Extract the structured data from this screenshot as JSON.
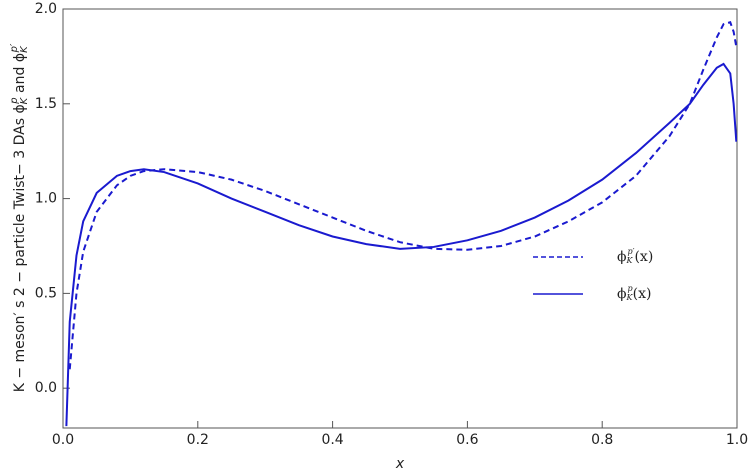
{
  "chart_data": {
    "type": "line",
    "y_label_parts": [
      "K − meson′ s 2 − particle Twist− 3 DAs ϕ",
      "K",
      "p",
      " and ϕ",
      "K",
      "p′"
    ],
    "x_label": "x",
    "x": [
      0.005,
      0.01,
      0.02,
      0.03,
      0.05,
      0.08,
      0.1,
      0.12,
      0.15,
      0.2,
      0.25,
      0.3,
      0.35,
      0.4,
      0.45,
      0.5,
      0.55,
      0.6,
      0.65,
      0.7,
      0.75,
      0.8,
      0.85,
      0.9,
      0.93,
      0.95,
      0.97,
      0.98,
      0.99,
      0.995,
      0.999
    ],
    "series": [
      {
        "name": "ϕ_K^p′(x)",
        "color": "#1a1acf",
        "dashed": true,
        "values": [
          null,
          0.1,
          0.5,
          0.72,
          0.93,
          1.07,
          1.12,
          1.145,
          1.155,
          1.14,
          1.1,
          1.04,
          0.97,
          0.9,
          0.83,
          0.77,
          0.735,
          0.73,
          0.75,
          0.8,
          0.88,
          0.98,
          1.12,
          1.33,
          1.5,
          1.68,
          1.85,
          1.92,
          1.93,
          1.88,
          1.8
        ]
      },
      {
        "name": "ϕ_K^p(x)",
        "color": "#1a1acf",
        "dashed": false,
        "values": [
          -0.2,
          0.35,
          0.7,
          0.88,
          1.03,
          1.12,
          1.145,
          1.155,
          1.14,
          1.08,
          1.0,
          0.93,
          0.86,
          0.8,
          0.76,
          0.735,
          0.745,
          0.78,
          0.83,
          0.9,
          0.99,
          1.1,
          1.24,
          1.4,
          1.5,
          1.6,
          1.69,
          1.71,
          1.66,
          1.5,
          1.3
        ]
      }
    ],
    "xlim": [
      0,
      1
    ],
    "ylim": [
      -0.21,
      2.0
    ],
    "xticks": [
      {
        "value": 0,
        "label": "0.0"
      },
      0.2,
      0.4,
      0.6,
      0.8,
      {
        "value": 1,
        "label": "1.0"
      }
    ],
    "yticks": [
      {
        "value": 0,
        "label": "0.0"
      },
      0.5,
      {
        "value": 1,
        "label": "1.0"
      },
      1.5,
      {
        "value": 2,
        "label": "2.0"
      }
    ]
  }
}
